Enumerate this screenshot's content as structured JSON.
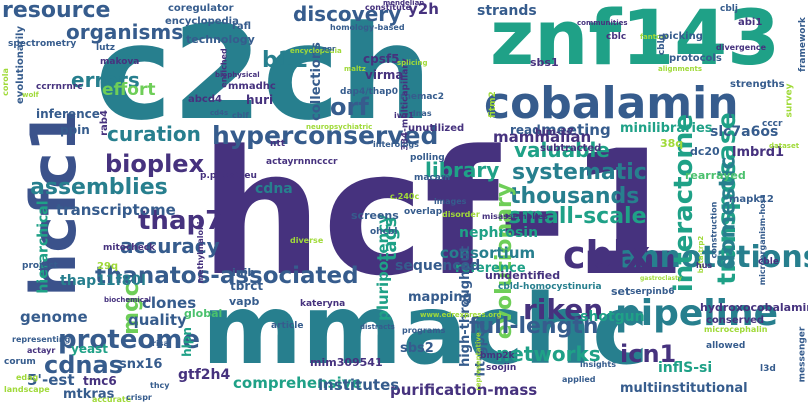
{
  "palette": {
    "dark_purple": "#46327e",
    "blue": "#365c8d",
    "slate": "#3b528b",
    "teal": "#277f8e",
    "teal_green": "#1fa187",
    "green": "#4ac16d",
    "light_green": "#6ece58",
    "yellow_green": "#a0da39",
    "yellow": "#fde725",
    "deep_purple": "#440154"
  },
  "words": [
    {
      "text": "hcf-1",
      "color": "#46327e"
    },
    {
      "text": "c2ch",
      "color": "#277f8e"
    },
    {
      "text": "mmachc",
      "color": "#277f8e"
    },
    {
      "text": "znf143",
      "color": "#1fa187"
    },
    {
      "text": "hcfc1",
      "color": "#3b528b"
    },
    {
      "text": "cobalamin",
      "color": "#365c8d"
    },
    {
      "text": "hyperconserved",
      "color": "#365c8d"
    },
    {
      "text": "thanatos-associated",
      "color": "#365c8d"
    },
    {
      "text": "annotations",
      "color": "#277f8e"
    },
    {
      "text": "interactome",
      "color": "#1fa187"
    },
    {
      "text": "transposase",
      "color": "#1fa187"
    },
    {
      "text": "pipeline",
      "color": "#277f8e"
    },
    {
      "text": "proteome",
      "color": "#365c8d"
    },
    {
      "text": "riken",
      "color": "#46327e"
    },
    {
      "text": "cblx",
      "color": "#46327e"
    },
    {
      "text": "bioplex",
      "color": "#46327e"
    },
    {
      "text": "curation",
      "color": "#277f8e"
    },
    {
      "text": "thap7",
      "color": "#46327e"
    },
    {
      "text": "systematic",
      "color": "#277f8e"
    },
    {
      "text": "thousands",
      "color": "#277f8e"
    },
    {
      "text": "small-scale",
      "color": "#1fa187"
    },
    {
      "text": "evolutionary",
      "color": "#6ece58"
    },
    {
      "text": "assemblies",
      "color": "#277f8e"
    },
    {
      "text": "accuracy",
      "color": "#365c8d"
    },
    {
      "text": "library",
      "color": "#1fa187"
    },
    {
      "text": "networks",
      "color": "#1fa187"
    },
    {
      "text": "domestic",
      "color": "#277f8e"
    },
    {
      "text": "icn1",
      "color": "#46327e"
    },
    {
      "text": "full-length",
      "color": "#365c8d"
    },
    {
      "text": "cdnas",
      "color": "#365c8d"
    },
    {
      "text": "resource",
      "color": "#365c8d"
    },
    {
      "text": "discovery",
      "color": "#365c8d"
    },
    {
      "text": "organisms",
      "color": "#365c8d"
    },
    {
      "text": "errors",
      "color": "#277f8e"
    },
    {
      "text": "b12",
      "color": "#277f8e"
    },
    {
      "text": "orf",
      "color": "#365c8d"
    },
    {
      "text": "effort",
      "color": "#6ece58"
    },
    {
      "text": "mgc",
      "color": "#6ece58"
    },
    {
      "text": "valuable",
      "color": "#1fa187"
    },
    {
      "text": "tags",
      "color": "#1fa187"
    },
    {
      "text": "clones",
      "color": "#365c8d"
    },
    {
      "text": "quality",
      "color": "#365c8d"
    },
    {
      "text": "genome",
      "color": "#365c8d"
    },
    {
      "text": "comprehensive",
      "color": "#1fa187"
    },
    {
      "text": "purification-mass",
      "color": "#46327e"
    },
    {
      "text": "institutes",
      "color": "#365c8d"
    },
    {
      "text": "consortium",
      "color": "#277f8e"
    },
    {
      "text": "reference",
      "color": "#1fa187"
    },
    {
      "text": "sequenced",
      "color": "#365c8d"
    },
    {
      "text": "mapping",
      "color": "#365c8d"
    },
    {
      "text": "high-throughput",
      "color": "#365c8d"
    },
    {
      "text": "ht-gpca",
      "color": "#365c8d"
    },
    {
      "text": "shotgun",
      "color": "#1fa187"
    },
    {
      "text": "inflS-si",
      "color": "#1fa187"
    },
    {
      "text": "multiinstitutional",
      "color": "#365c8d"
    },
    {
      "text": "transcriptome",
      "color": "#365c8d"
    },
    {
      "text": "thap11f80l",
      "color": "#277f8e"
    },
    {
      "text": "collections",
      "color": "#365c8d"
    },
    {
      "text": "strands",
      "color": "#365c8d"
    },
    {
      "text": "meeting",
      "color": "#365c8d"
    },
    {
      "text": "mammalian",
      "color": "#46327e"
    },
    {
      "text": "read",
      "color": "#365c8d"
    },
    {
      "text": "y2h",
      "color": "#46327e"
    },
    {
      "text": "cdna",
      "color": "#277f8e"
    },
    {
      "text": "pluripotency",
      "color": "#1fa187"
    },
    {
      "text": "hierarchical",
      "color": "#1fa187"
    },
    {
      "text": "5'-est",
      "color": "#365c8d"
    },
    {
      "text": "mtkras",
      "color": "#365c8d"
    },
    {
      "text": "gtf2h4",
      "color": "#46327e"
    },
    {
      "text": "tmc6",
      "color": "#46327e"
    },
    {
      "text": "snx16",
      "color": "#365c8d"
    },
    {
      "text": "sbs2",
      "color": "#365c8d"
    },
    {
      "text": "hlpn",
      "color": "#1fa187"
    },
    {
      "text": "yeast",
      "color": "#1fa187"
    },
    {
      "text": "mim309541",
      "color": "#46327e"
    },
    {
      "text": "slc7a6os",
      "color": "#365c8d"
    },
    {
      "text": "lmbrd1",
      "color": "#46327e"
    },
    {
      "text": "minilibraries",
      "color": "#1fa187"
    },
    {
      "text": "tbrct",
      "color": "#365c8d"
    },
    {
      "text": "inib",
      "color": "#365c8d"
    },
    {
      "text": "vapb",
      "color": "#365c8d"
    },
    {
      "text": "global",
      "color": "#4ac16d"
    },
    {
      "text": "screens",
      "color": "#365c8d"
    },
    {
      "text": "nephrosin",
      "color": "#1fa187"
    },
    {
      "text": "rearrayed",
      "color": "#4ac16d"
    },
    {
      "text": "unidentified",
      "color": "#46327e"
    },
    {
      "text": "cbld-homocystinuria",
      "color": "#277f8e"
    },
    {
      "text": "set",
      "color": "#365c8d"
    },
    {
      "text": "serpinb6",
      "color": "#365c8d"
    },
    {
      "text": "hydroxocobalamin",
      "color": "#46327e"
    },
    {
      "text": "conserved",
      "color": "#46327e"
    },
    {
      "text": "mapk12",
      "color": "#365c8d"
    },
    {
      "text": "dc20",
      "color": "#365c8d"
    },
    {
      "text": "38q",
      "color": "#a0da39"
    },
    {
      "text": "huri",
      "color": "#46327e"
    },
    {
      "text": "ppin",
      "color": "#365c8d"
    },
    {
      "text": "inference",
      "color": "#365c8d"
    },
    {
      "text": "rab4",
      "color": "#46327e"
    },
    {
      "text": "abcd4",
      "color": "#46327e"
    },
    {
      "text": "mmadhc",
      "color": "#46327e"
    },
    {
      "text": "technology",
      "color": "#365c8d"
    },
    {
      "text": "encyclopedia",
      "color": "#365c8d"
    },
    {
      "text": "rafl",
      "color": "#365c8d"
    },
    {
      "text": "coregulator",
      "color": "#365c8d"
    },
    {
      "text": "cpsf5",
      "color": "#46327e"
    },
    {
      "text": "virma",
      "color": "#46327e"
    },
    {
      "text": "sbs1",
      "color": "#46327e"
    },
    {
      "text": "him-17",
      "color": "#46327e"
    },
    {
      "text": "subtracted",
      "color": "#46327e"
    },
    {
      "text": "dap4/thap0",
      "color": "#365c8d"
    },
    {
      "text": "rhemac2",
      "color": "#365c8d"
    },
    {
      "text": "homology-based",
      "color": "#365c8d"
    },
    {
      "text": "384-multicapillary",
      "color": "#46327e"
    },
    {
      "text": "constitute",
      "color": "#46327e"
    },
    {
      "text": "mendelian",
      "color": "#46327e"
    },
    {
      "text": "communities",
      "color": "#46327e"
    },
    {
      "text": "fantom",
      "color": "#a0da39"
    },
    {
      "text": "picking",
      "color": "#365c8d"
    },
    {
      "text": "cblj",
      "color": "#365c8d"
    },
    {
      "text": "abi1",
      "color": "#46327e"
    },
    {
      "text": "divergence",
      "color": "#46327e"
    },
    {
      "text": "framework",
      "color": "#365c8d"
    },
    {
      "text": "strengths",
      "color": "#365c8d"
    },
    {
      "text": "protocols",
      "color": "#365c8d"
    },
    {
      "text": "alignments",
      "color": "#a0da39"
    },
    {
      "text": "cblg",
      "color": "#365c8d"
    },
    {
      "text": "cblc",
      "color": "#46327e"
    },
    {
      "text": "evolutionarily",
      "color": "#365c8d"
    },
    {
      "text": "spectrometry",
      "color": "#365c8d"
    },
    {
      "text": "corola",
      "color": "#a0da39"
    },
    {
      "text": "ccrrnrnrc",
      "color": "#46327e"
    },
    {
      "text": "makova",
      "color": "#46327e"
    },
    {
      "text": "lutz",
      "color": "#365c8d"
    },
    {
      "text": "enriched",
      "color": "#46327e"
    },
    {
      "text": "biophysical",
      "color": "#46327e"
    },
    {
      "text": "splicing",
      "color": "#a0da39"
    },
    {
      "text": "maltz",
      "color": "#a0da39"
    },
    {
      "text": "neuropsychiatric",
      "color": "#a0da39"
    },
    {
      "text": "unutilized",
      "color": "#46327e"
    },
    {
      "text": "dnas",
      "color": "#365c8d"
    },
    {
      "text": "iwr1",
      "color": "#46327e"
    },
    {
      "text": "fitm2",
      "color": "#a0da39"
    },
    {
      "text": "survey",
      "color": "#a0da39"
    },
    {
      "text": "cccr",
      "color": "#365c8d"
    },
    {
      "text": "dataset",
      "color": "#a0da39"
    },
    {
      "text": "actayrnnncccr",
      "color": "#46327e"
    },
    {
      "text": "p.phe80leu",
      "color": "#46327e"
    },
    {
      "text": "interologs",
      "color": "#365c8d"
    },
    {
      "text": "polling",
      "color": "#365c8d"
    },
    {
      "text": "ntt",
      "color": "#46327e"
    },
    {
      "text": "macam",
      "color": "#365c8d"
    },
    {
      "text": "overlap",
      "color": "#365c8d"
    },
    {
      "text": "images",
      "color": "#365c8d"
    },
    {
      "text": "disorder",
      "color": "#a0da39"
    },
    {
      "text": "misassemblies",
      "color": "#46327e"
    },
    {
      "text": "c.240c",
      "color": "#a0da39"
    },
    {
      "text": "29q",
      "color": "#a0da39"
    },
    {
      "text": "mitocheck",
      "color": "#46327e"
    },
    {
      "text": "methylmalonic",
      "color": "#46327e"
    },
    {
      "text": "biochemical",
      "color": "#46327e"
    },
    {
      "text": "project",
      "color": "#365c8d"
    },
    {
      "text": "diverse",
      "color": "#a0da39"
    },
    {
      "text": "ohcbl",
      "color": "#365c8d"
    },
    {
      "text": "kateryna",
      "color": "#46327e"
    },
    {
      "text": "article",
      "color": "#365c8d"
    },
    {
      "text": "distracts",
      "color": "#365c8d"
    },
    {
      "text": "programs",
      "color": "#365c8d"
    },
    {
      "text": "www.edrexpress.org",
      "color": "#a0da39"
    },
    {
      "text": "microorganism-host",
      "color": "#365c8d"
    },
    {
      "text": "construction",
      "color": "#365c8d"
    },
    {
      "text": "beta-trp2",
      "color": "#a0da39"
    },
    {
      "text": "hus",
      "color": "#46327e"
    },
    {
      "text": "gastroclasty",
      "color": "#a0da39"
    },
    {
      "text": "corum",
      "color": "#365c8d"
    },
    {
      "text": "edag",
      "color": "#a0da39"
    },
    {
      "text": "actayr",
      "color": "#46327e"
    },
    {
      "text": "landscape",
      "color": "#a0da39"
    },
    {
      "text": "representing",
      "color": "#365c8d"
    },
    {
      "text": "risa",
      "color": "#365c8d"
    },
    {
      "text": "accurate",
      "color": "#a0da39"
    },
    {
      "text": "crispr",
      "color": "#365c8d"
    },
    {
      "text": "representative",
      "color": "#a0da39"
    },
    {
      "text": "soojin",
      "color": "#46327e"
    },
    {
      "text": "bmp2k",
      "color": "#46327e"
    },
    {
      "text": "applied",
      "color": "#365c8d"
    },
    {
      "text": "insights",
      "color": "#365c8d"
    },
    {
      "text": "allowed",
      "color": "#365c8d"
    },
    {
      "text": "microcephalin",
      "color": "#a0da39"
    },
    {
      "text": "cble",
      "color": "#46327e"
    },
    {
      "text": "messenger",
      "color": "#365c8d"
    },
    {
      "text": "l3d",
      "color": "#365c8d"
    },
    {
      "text": "thcy",
      "color": "#365c8d"
    },
    {
      "text": "cblf",
      "color": "#365c8d"
    },
    {
      "text": "cd4s",
      "color": "#365c8d"
    },
    {
      "text": "encyclopedia",
      "color": "#a0da39"
    },
    {
      "text": "nnr",
      "color": "#365c8d"
    },
    {
      "text": "wolf",
      "color": "#a0da39"
    }
  ]
}
